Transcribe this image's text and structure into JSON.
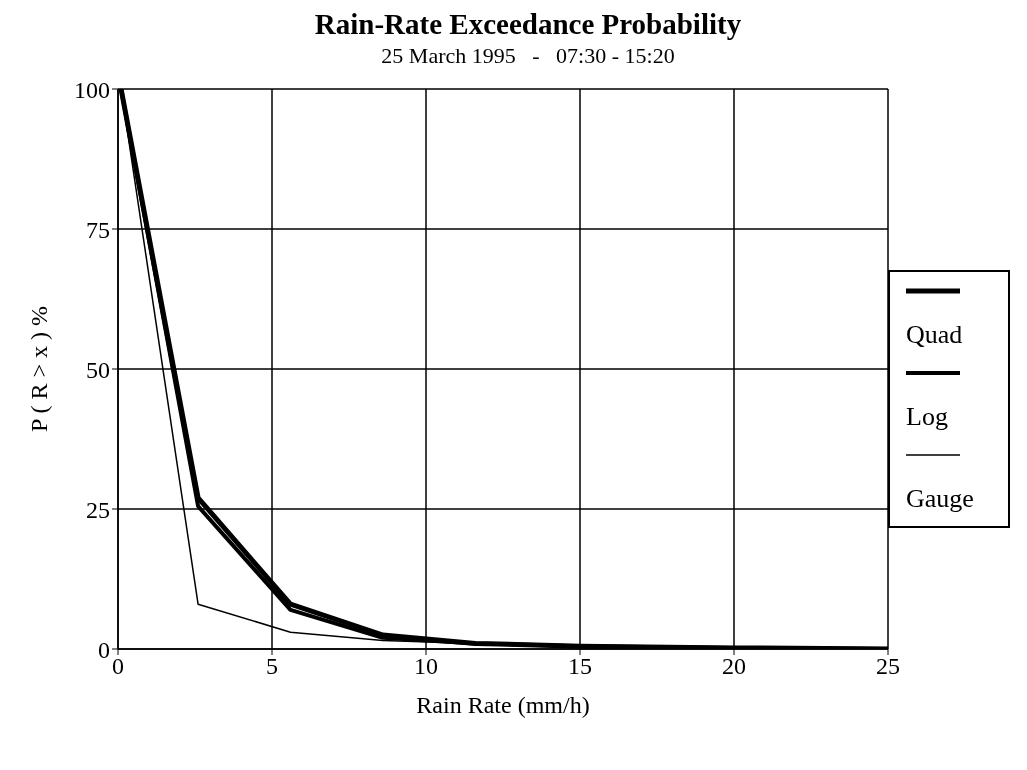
{
  "chart_data": {
    "type": "line",
    "title": "Rain-Rate Exceedance Probability",
    "subtitle": "25 March 1995   -   07:30 - 15:20",
    "xlabel": "Rain Rate (mm/h)",
    "ylabel": "P ( R > x ) %",
    "x": [
      0.1,
      2.6,
      5.6,
      8.6,
      11.6,
      15,
      20,
      25
    ],
    "series": [
      {
        "name": "Quad",
        "color": "#000000",
        "values": [
          100,
          27,
          8,
          2.5,
          1,
          0.5,
          0.2,
          0
        ]
      },
      {
        "name": "Log",
        "color": "#000000",
        "values": [
          100,
          25.5,
          7,
          2,
          1,
          0.5,
          0.2,
          0
        ]
      },
      {
        "name": "Gauge",
        "color": "#000000",
        "values": [
          100,
          8,
          3,
          1.5,
          1,
          0.5,
          0.2,
          0
        ]
      }
    ],
    "xlim": [
      0,
      25
    ],
    "xticks": [
      0,
      5,
      10,
      15,
      20,
      25
    ],
    "ylim": [
      0,
      100
    ],
    "yticks": [
      0,
      25,
      50,
      75,
      100
    ],
    "grid": true,
    "legend": "right",
    "marker": "none",
    "line_style": "solid"
  }
}
